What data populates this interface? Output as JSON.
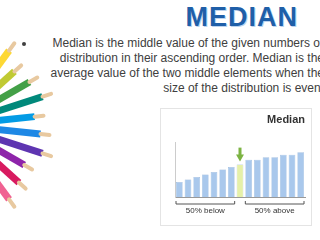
{
  "header": {
    "title": "MEDIAN"
  },
  "body": {
    "bullets": [
      "Median is the middle value of the given numbers or distribution in their ascending order. Median is the average value of the two middle elements when the size of the distribution is even."
    ]
  },
  "chart_data": {
    "type": "bar",
    "title": "Median",
    "categories": [
      null,
      null,
      null,
      null,
      null,
      null,
      null,
      null,
      null,
      null,
      null,
      null,
      null,
      null,
      null
    ],
    "values": [
      3,
      3.5,
      4,
      4.5,
      5,
      5.5,
      6,
      6.5,
      7.5,
      7.5,
      8,
      8,
      8.5,
      8.5,
      9
    ],
    "colors": [
      "#a9c8ec",
      "#a9c8ec",
      "#a9c8ec",
      "#a9c8ec",
      "#a9c8ec",
      "#a9c8ec",
      "#a9c8ec",
      "#e6f0a8",
      "#a9c8ec",
      "#a9c8ec",
      "#a9c8ec",
      "#a9c8ec",
      "#a9c8ec",
      "#a9c8ec",
      "#a9c8ec"
    ],
    "ylim": [
      0,
      11
    ],
    "grid": false,
    "tick_labels": false,
    "annotations": [
      "50% below",
      "50% above"
    ]
  }
}
